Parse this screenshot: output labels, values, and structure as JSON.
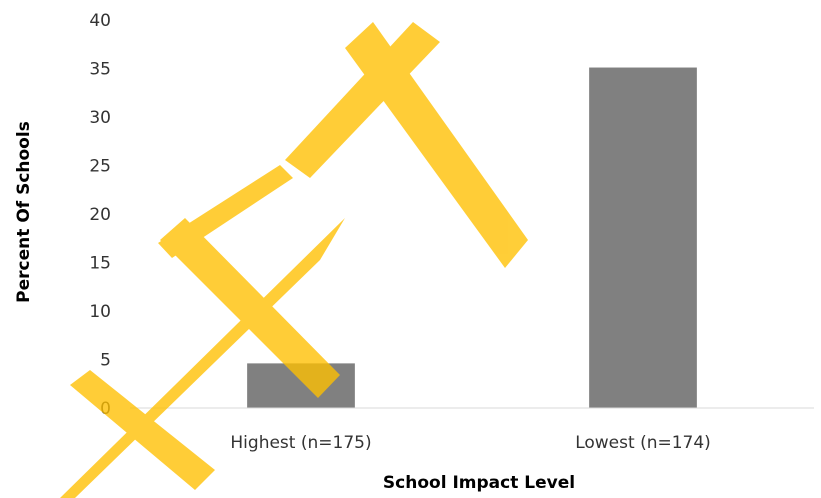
{
  "chart_data": {
    "type": "bar",
    "categories": [
      "Highest (n=175)",
      "Lowest (n=174)"
    ],
    "values": [
      4.6,
      35.1
    ],
    "xlabel": "School Impact Level",
    "ylabel": "Percent Of Schools",
    "ylim": [
      0,
      40
    ],
    "yticks": [
      0,
      5,
      10,
      15,
      20,
      25,
      30,
      35,
      40
    ],
    "grid": false,
    "bar_color": "#808080",
    "axis_color": "#d9d9d9"
  },
  "watermark": {
    "text": "DRAFT",
    "color": "#FFC000"
  }
}
